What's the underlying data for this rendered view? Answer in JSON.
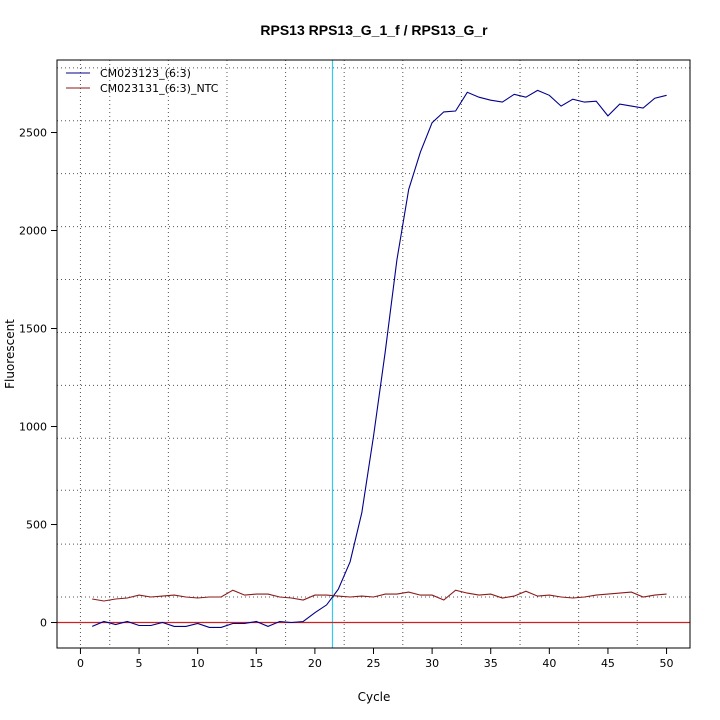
{
  "chart_data": {
    "type": "line",
    "title": "RPS13  RPS13_G_1_f / RPS13_G_r",
    "xlabel": "Cycle",
    "ylabel": "Fluorescent",
    "xlim": [
      -2,
      52
    ],
    "ylim": [
      -130,
      2870
    ],
    "xticks": [
      0,
      5,
      10,
      15,
      20,
      25,
      30,
      35,
      40,
      45,
      50
    ],
    "yticks": [
      0,
      500,
      1000,
      1500,
      2000,
      2500
    ],
    "x_grid": [
      0,
      2.5,
      7.5,
      12.5,
      17.5,
      22.5,
      27.5,
      32.5,
      37.5,
      42.5,
      47.5
    ],
    "y_grid": [
      130,
      400,
      675,
      940,
      1210,
      1480,
      1750,
      2020,
      2290,
      2560,
      2830
    ],
    "grid": true,
    "legend_position": "top-left",
    "threshold_line": {
      "axis": "x",
      "value": 21.5,
      "color": "#33ccee"
    },
    "baseline_line": {
      "axis": "y",
      "value": 0,
      "color": "#cc2222"
    },
    "x": [
      1,
      2,
      3,
      4,
      5,
      6,
      7,
      8,
      9,
      10,
      11,
      12,
      13,
      14,
      15,
      16,
      17,
      18,
      19,
      20,
      21,
      22,
      23,
      24,
      25,
      26,
      27,
      28,
      29,
      30,
      31,
      32,
      33,
      34,
      35,
      36,
      37,
      38,
      39,
      40,
      41,
      42,
      43,
      44,
      45,
      46,
      47,
      48,
      49,
      50
    ],
    "series": [
      {
        "name": "CM023123_(6:3)",
        "color": "#00008b",
        "values": [
          -20,
          5,
          -10,
          5,
          -15,
          -15,
          0,
          -20,
          -20,
          -5,
          -25,
          -25,
          -5,
          -5,
          5,
          -20,
          5,
          0,
          5,
          50,
          90,
          170,
          310,
          560,
          950,
          1380,
          1850,
          2210,
          2400,
          2550,
          2605,
          2610,
          2705,
          2680,
          2665,
          2655,
          2695,
          2680,
          2715,
          2690,
          2635,
          2670,
          2655,
          2660,
          2585,
          2645,
          2635,
          2625,
          2675,
          2690
        ]
      },
      {
        "name": "CM023131_(6:3)_NTC",
        "color": "#8b1a1a",
        "values": [
          120,
          110,
          120,
          125,
          140,
          130,
          135,
          140,
          130,
          125,
          130,
          130,
          165,
          140,
          145,
          145,
          130,
          125,
          115,
          140,
          140,
          135,
          130,
          135,
          130,
          145,
          145,
          155,
          140,
          140,
          115,
          165,
          150,
          140,
          145,
          125,
          135,
          160,
          135,
          140,
          130,
          125,
          130,
          140,
          145,
          150,
          155,
          130,
          140,
          145
        ]
      }
    ]
  }
}
